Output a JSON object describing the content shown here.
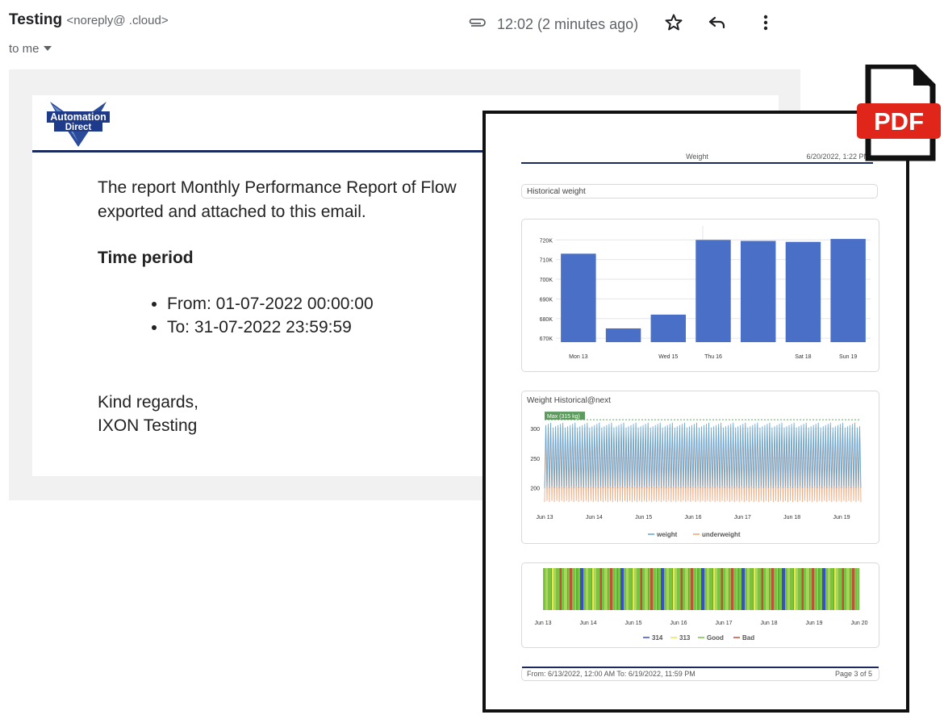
{
  "email": {
    "sender_name": "Testing",
    "sender_address": "<noreply@        .cloud>",
    "to_label": "to me",
    "time": "12:02 (2 minutes ago)",
    "body_line1": "The report Monthly Performance Report of Flow",
    "body_line2": "exported and attached to this email.",
    "time_period_heading": "Time period",
    "from": "From: 01-07-2022 00:00:00",
    "to": "To: 31-07-2022 23:59:59",
    "regards": "Kind regards,",
    "signature": "IXON Testing",
    "logo_line1": "Automation",
    "logo_line2": "Direct"
  },
  "icons": [
    "attachment-icon",
    "star-icon",
    "reply-icon",
    "more-vert-icon",
    "dropdown-icon",
    "pdf-file-icon"
  ],
  "pdf_badge": "PDF",
  "pdf": {
    "header_title": "Weight",
    "header_date": "6/20/2022, 1:22 PM",
    "section_title": "Historical weight",
    "footer_range": "From: 6/13/2022, 12:00 AM To: 6/19/2022, 11:59 PM",
    "footer_page": "Page 3 of 5"
  },
  "chart_data": [
    {
      "type": "bar",
      "categories": [
        "Mon 13",
        "",
        "Wed 15",
        "Thu 16",
        "",
        "Sat 18",
        "Sun 19"
      ],
      "values": [
        713000,
        675000,
        682000,
        720000,
        719500,
        719000,
        720500
      ],
      "ylim": [
        668000,
        723000
      ],
      "yticks": [
        "720K",
        "710K",
        "700K",
        "690K",
        "680K",
        "670K"
      ],
      "ytick_values": [
        720000,
        710000,
        700000,
        690000,
        680000,
        670000
      ],
      "color": "#4a6fc6"
    },
    {
      "type": "line",
      "title": "Weight Historical@next",
      "x_ticks": [
        "Jun 13",
        "Jun 14",
        "Jun 15",
        "Jun 16",
        "Jun 17",
        "Jun 18",
        "Jun 19"
      ],
      "y_ticks": [
        "300",
        "250",
        "200"
      ],
      "ytick_values": [
        300,
        250,
        200
      ],
      "ylim": [
        172,
        322
      ],
      "annotation": "Max (315 kg)",
      "max_value": 315,
      "series": [
        {
          "name": "weight",
          "color": "#5ba4d8",
          "low": 200,
          "high": 310
        },
        {
          "name": "underweight",
          "color": "#f0a070",
          "low": 176,
          "high": 305
        }
      ]
    },
    {
      "type": "bar",
      "x_ticks": [
        "Jun 13",
        "Jun 14",
        "Jun 15",
        "Jun 16",
        "Jun 17",
        "Jun 18",
        "Jun 19",
        "Jun 20"
      ],
      "series": [
        {
          "name": "314",
          "color": "#3b4fc4"
        },
        {
          "name": "313",
          "color": "#e8e84a"
        },
        {
          "name": "Good",
          "color": "#76c442"
        },
        {
          "name": "Bad",
          "color": "#c0503a"
        }
      ]
    }
  ]
}
